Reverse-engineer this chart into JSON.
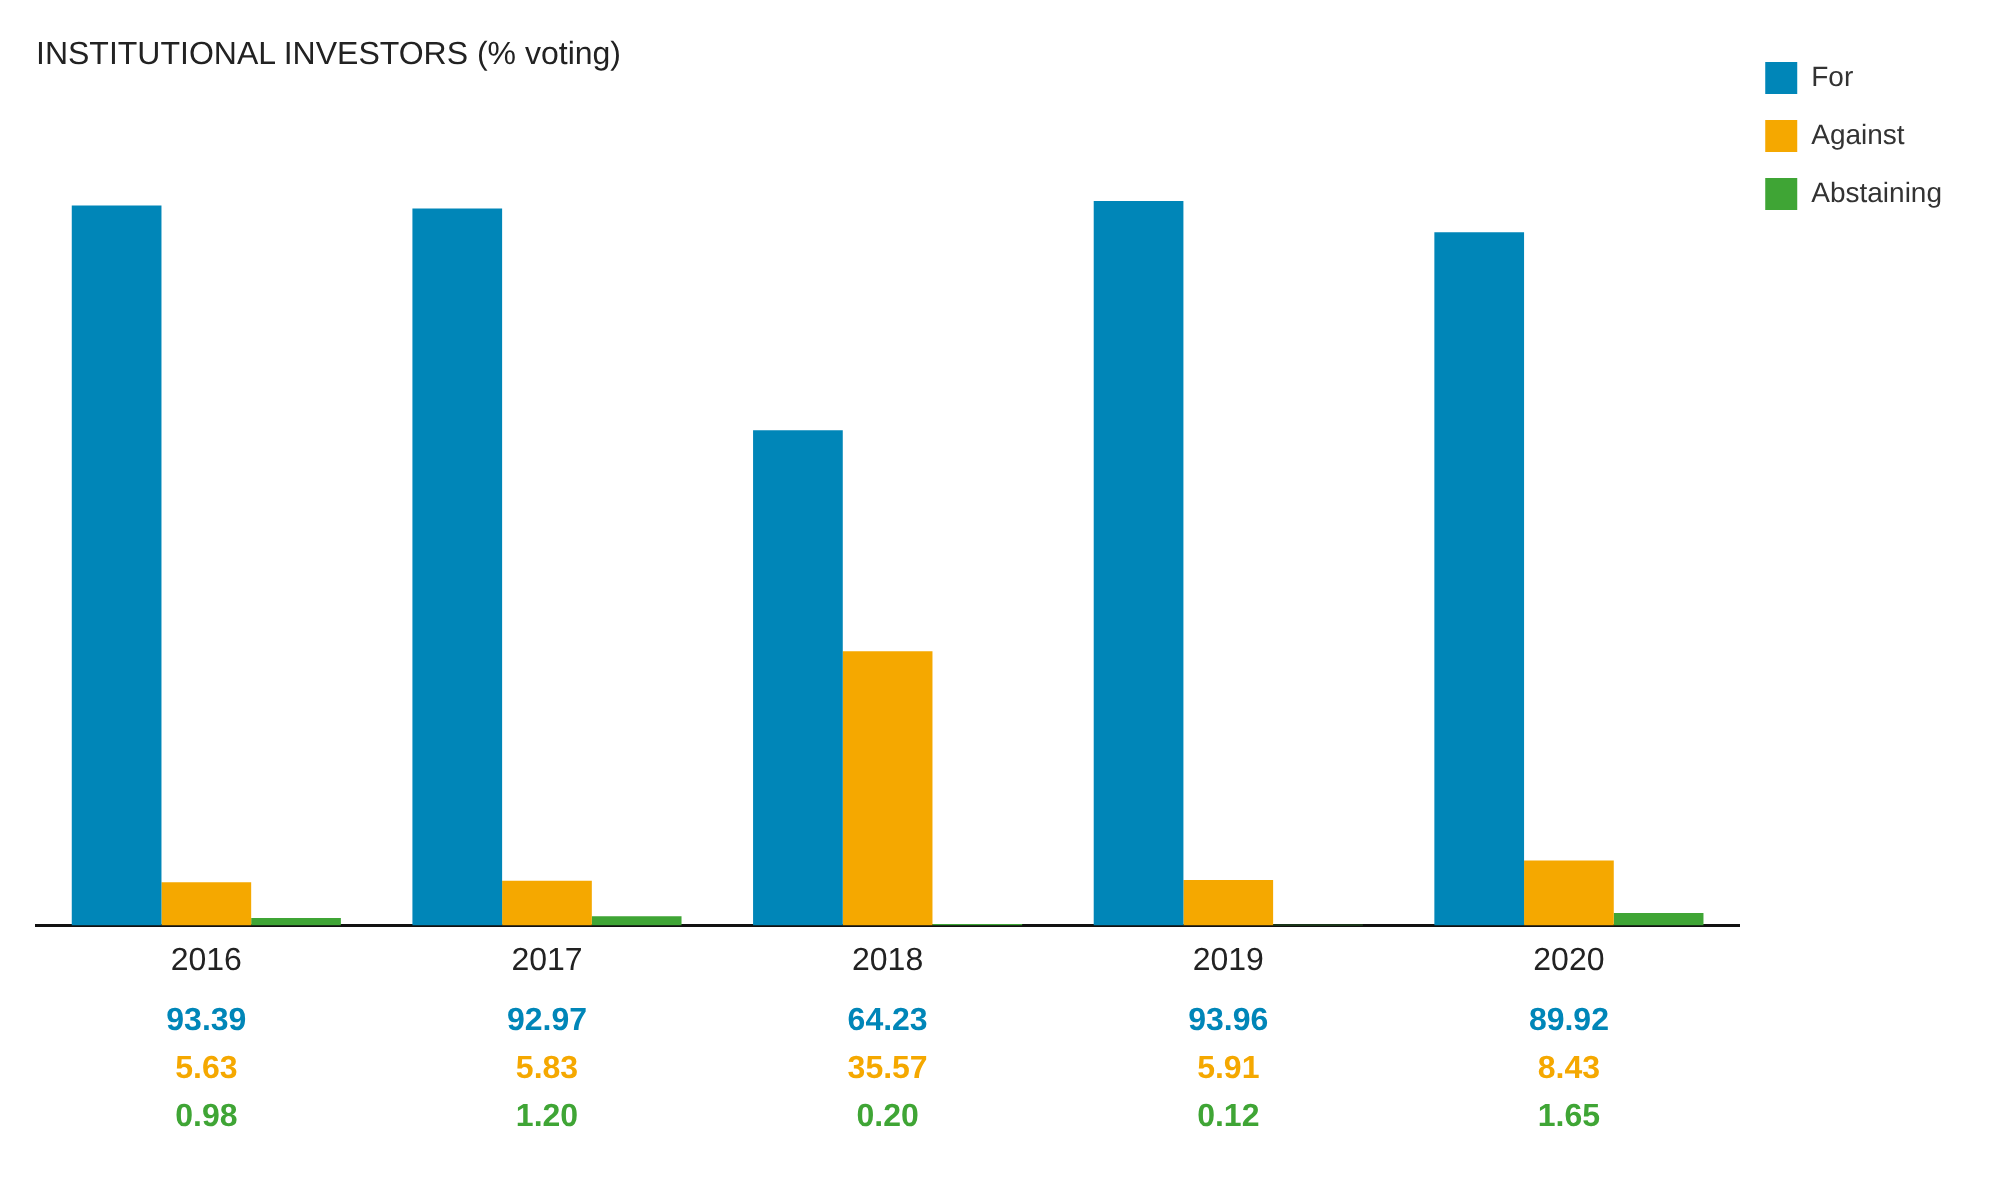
{
  "chart_data": {
    "type": "bar",
    "title": "INSTITUTIONAL INVESTORS (% voting)",
    "categories": [
      "2016",
      "2017",
      "2018",
      "2019",
      "2020"
    ],
    "series": [
      {
        "name": "For",
        "color": "#0086b8",
        "values": [
          93.39,
          92.97,
          64.23,
          93.96,
          89.92
        ],
        "value_labels": [
          "93.39",
          "92.97",
          "64.23",
          "93.96",
          "89.92"
        ]
      },
      {
        "name": "Against",
        "color": "#f5a800",
        "values": [
          5.63,
          5.83,
          35.57,
          5.91,
          8.43
        ],
        "value_labels": [
          "5.63",
          "5.83",
          "35.57",
          "5.91",
          "8.43"
        ]
      },
      {
        "name": "Abstaining",
        "color": "#3fa535",
        "values": [
          0.98,
          1.2,
          0.2,
          0.12,
          1.65
        ],
        "value_labels": [
          "0.98",
          "1.20",
          "0.20",
          "0.12",
          "1.65"
        ]
      }
    ],
    "legend": "top right",
    "grid": false,
    "tick_labels": "x"
  }
}
